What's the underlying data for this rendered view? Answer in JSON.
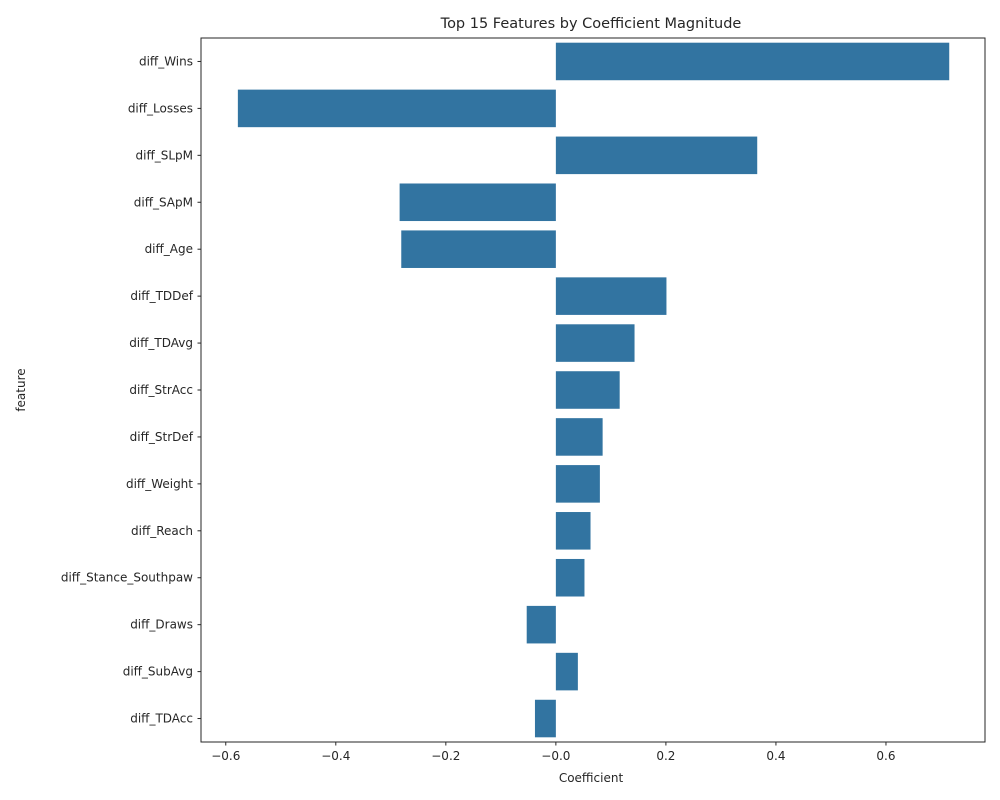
{
  "chart_data": {
    "type": "bar",
    "orientation": "horizontal",
    "title": "Top 15 Features by Coefficient Magnitude",
    "xlabel": "Coefficient",
    "ylabel": "feature",
    "categories": [
      "diff_Wins",
      "diff_Losses",
      "diff_SLpM",
      "diff_SApM",
      "diff_Age",
      "diff_TDDef",
      "diff_TDAvg",
      "diff_StrAcc",
      "diff_StrDef",
      "diff_Weight",
      "diff_Reach",
      "diff_Stance_Southpaw",
      "diff_Draws",
      "diff_SubAvg",
      "diff_TDAcc"
    ],
    "values": [
      0.715,
      -0.578,
      0.366,
      -0.284,
      -0.281,
      0.201,
      0.143,
      0.116,
      0.085,
      0.08,
      0.063,
      0.052,
      -0.053,
      0.04,
      -0.038
    ],
    "xlim": [
      -0.645,
      0.78
    ],
    "xticks": [
      -0.6,
      -0.4,
      -0.2,
      0.0,
      0.2,
      0.4,
      0.6
    ],
    "xtick_labels": [
      "−0.6",
      "−0.4",
      "−0.2",
      "−0.0",
      "0.2",
      "0.4",
      "0.6"
    ],
    "grid": false,
    "bar_color": "#3274a1"
  }
}
